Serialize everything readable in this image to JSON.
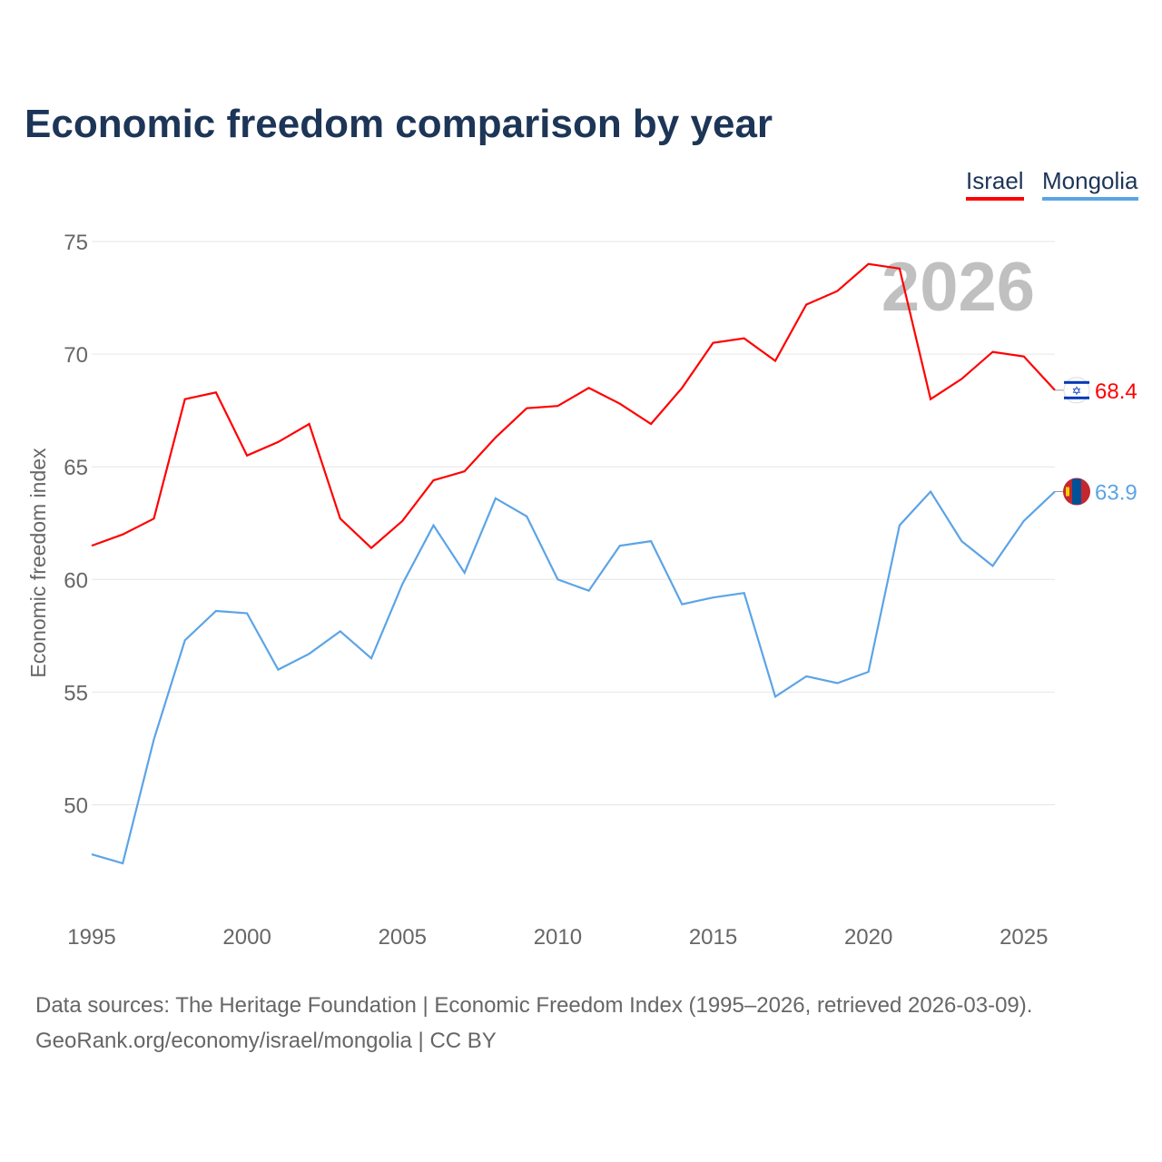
{
  "chart_data": {
    "type": "line",
    "title": "Economic freedom comparison by year",
    "ylabel": "Economic freedom index",
    "xlabel": "",
    "ylim": [
      45,
      76
    ],
    "xlim": [
      1995,
      2026
    ],
    "yticks": [
      50,
      55,
      60,
      65,
      70,
      75
    ],
    "xticks": [
      1995,
      2000,
      2005,
      2010,
      2015,
      2020,
      2025
    ],
    "grid": true,
    "legend_position": "top-right",
    "watermark_year": "2026",
    "x": [
      1995,
      1996,
      1997,
      1998,
      1999,
      2000,
      2001,
      2002,
      2003,
      2004,
      2005,
      2006,
      2007,
      2008,
      2009,
      2010,
      2011,
      2012,
      2013,
      2014,
      2015,
      2016,
      2017,
      2018,
      2019,
      2020,
      2021,
      2022,
      2023,
      2024,
      2025,
      2026
    ],
    "series": [
      {
        "name": "Israel",
        "color": "#ff0000",
        "end_label": "68.4",
        "values": [
          61.5,
          62.0,
          62.7,
          68.0,
          68.3,
          65.5,
          66.1,
          66.9,
          62.7,
          61.4,
          62.6,
          64.4,
          64.8,
          66.3,
          67.6,
          67.7,
          68.5,
          67.8,
          66.9,
          68.5,
          70.5,
          70.7,
          69.7,
          72.2,
          72.8,
          74.0,
          73.8,
          68.0,
          68.9,
          70.1,
          69.9,
          68.4
        ]
      },
      {
        "name": "Mongolia",
        "color": "#5ba4e6",
        "end_label": "63.9",
        "values": [
          47.8,
          47.4,
          52.9,
          57.3,
          58.6,
          58.5,
          56.0,
          56.7,
          57.7,
          56.5,
          59.8,
          62.4,
          60.3,
          63.6,
          62.8,
          60.0,
          59.5,
          61.5,
          61.7,
          58.9,
          59.2,
          59.4,
          54.8,
          55.7,
          55.4,
          55.9,
          62.4,
          63.9,
          61.7,
          60.6,
          62.6,
          63.9
        ]
      }
    ]
  },
  "footer": {
    "line1": "Data sources: The Heritage Foundation | Economic Freedom Index (1995–2026, retrieved 2026-03-09).",
    "line2": "GeoRank.org/economy/israel/mongolia | CC BY"
  }
}
